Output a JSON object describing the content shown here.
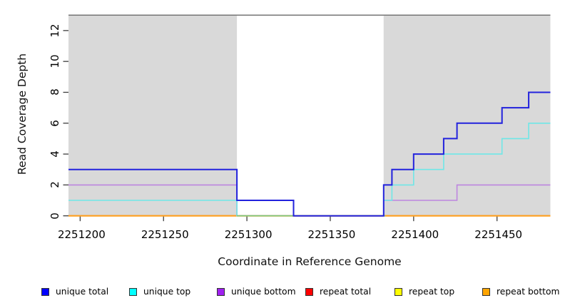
{
  "chart_data": {
    "type": "line",
    "subtype": "step-coverage",
    "title": "",
    "xlabel": "Coordinate in Reference Genome",
    "ylabel": "Read Coverage Depth",
    "xlim": [
      2251193,
      2251482
    ],
    "ylim": [
      0,
      13
    ],
    "x_ticks": [
      2251200,
      2251250,
      2251300,
      2251350,
      2251400,
      2251450
    ],
    "x_tick_labels": [
      "2251200",
      "2251250",
      "2251300",
      "2251350",
      "2251400",
      "2251450"
    ],
    "y_ticks": [
      0,
      2,
      4,
      6,
      8,
      10,
      12
    ],
    "y_tick_labels": [
      "0",
      "2",
      "4",
      "6",
      "8",
      "10",
      "12"
    ],
    "grid": false,
    "legend_position": "bottom",
    "plot_bg": "#ffffff",
    "exon_region_fill": "#d9d9d9",
    "exon_regions": [
      [
        2251193,
        2251294
      ],
      [
        2251382,
        2251482
      ]
    ],
    "top_border_color": "#757575",
    "axis_tick_color": "#3d3d3d",
    "series": [
      {
        "name": "unique total",
        "legend_color": "#0000ff",
        "line_color": "#2222dd",
        "line_width": 2.0,
        "steps": [
          [
            2251193,
            3
          ],
          [
            2251294,
            1
          ],
          [
            2251328,
            0
          ],
          [
            2251382,
            2
          ],
          [
            2251387,
            3
          ],
          [
            2251400,
            4
          ],
          [
            2251418,
            5
          ],
          [
            2251426,
            6
          ],
          [
            2251453,
            7
          ],
          [
            2251469,
            8
          ]
        ],
        "end": 2251482
      },
      {
        "name": "unique top",
        "legend_color": "#00ffff",
        "line_color": "#6fe7e7",
        "line_width": 1.6,
        "steps": [
          [
            2251193,
            1
          ],
          [
            2251294,
            0
          ],
          [
            2251382,
            1
          ],
          [
            2251387,
            2
          ],
          [
            2251400,
            3
          ],
          [
            2251418,
            4
          ],
          [
            2251453,
            5
          ],
          [
            2251469,
            6
          ]
        ],
        "end": 2251482
      },
      {
        "name": "unique bottom",
        "legend_color": "#a020f0",
        "line_color": "#bd85df",
        "line_width": 1.6,
        "steps": [
          [
            2251193,
            2
          ],
          [
            2251294,
            0
          ],
          [
            2251382,
            1
          ],
          [
            2251426,
            2
          ]
        ],
        "end": 2251482
      },
      {
        "name": "repeat total",
        "legend_color": "#ff0000",
        "line_color": "#dd0000",
        "line_width": 1.6,
        "steps": [
          [
            2251193,
            0
          ]
        ],
        "end": 2251482
      },
      {
        "name": "repeat top",
        "legend_color": "#ffff00",
        "line_color": "#ffff00",
        "line_width": 1.6,
        "steps": [
          [
            2251193,
            0
          ]
        ],
        "end": 2251482
      },
      {
        "name": "repeat bottom",
        "legend_color": "#ffa500",
        "line_color": "#ff9f1e",
        "line_width": 2.0,
        "steps": [
          [
            2251193,
            0
          ]
        ],
        "end": 2251482
      }
    ],
    "overlap_zero_line": {
      "x_start": 2251294,
      "x_end": 2251383,
      "value": 0,
      "color": "#7cc87c",
      "line_width": 1.6
    }
  }
}
